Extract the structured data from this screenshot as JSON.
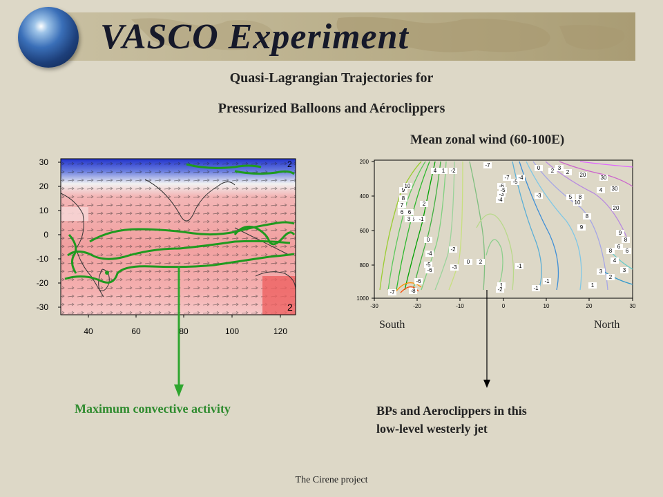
{
  "header": {
    "title": "VASCO Experiment",
    "subtitle_line1": "Quasi-Lagrangian Trajectories for",
    "subtitle_line2": "Pressurized Balloons and Aéroclippers"
  },
  "left_map": {
    "x_ticks": [
      "40",
      "60",
      "80",
      "100",
      "120"
    ],
    "y_ticks": [
      "30",
      "20",
      "10",
      "0",
      "-10",
      "-20",
      "-30"
    ],
    "corner_labels": [
      "2",
      "2"
    ],
    "caption": "Maximum convective activity"
  },
  "right_chart": {
    "title": "Mean zonal wind (60-100E)",
    "x_ticks": [
      "-30",
      "-20",
      "-10",
      "0",
      "10",
      "20",
      "30"
    ],
    "y_ticks": [
      "200",
      "400",
      "600",
      "800",
      "1000"
    ],
    "south_label": "South",
    "north_label": "North",
    "caption_line1": "BPs and Aeroclippers in this",
    "caption_line2": "low-level westerly jet",
    "contour_labels": [
      "4",
      "1",
      "-2",
      "-7",
      "-6",
      "-7",
      "-5",
      "-4",
      "0",
      "2",
      "3",
      "2",
      "9",
      "8",
      "10",
      "7",
      "6",
      "6",
      "2",
      "5",
      "3",
      "-1",
      "0",
      "-4",
      "-5",
      "-6",
      "-6",
      "-8",
      "-2",
      "-3",
      "0",
      "2",
      "1",
      "-2",
      "-1",
      "-1",
      "-1",
      "-3",
      "-5",
      "-4",
      "-3",
      "5",
      "8",
      "10",
      "20",
      "30",
      "30",
      "4",
      "20",
      "9",
      "8",
      "9",
      "8",
      "6",
      "8",
      "6",
      "4",
      "3",
      "2",
      "3",
      "1",
      "-7"
    ],
    "colors": {
      "frame": "#000000",
      "background": "#ddd8c7"
    }
  },
  "footer": {
    "text": "The Cirene project"
  },
  "colors": {
    "caption_green": "#2e8b2e",
    "trajectory_green": "#1f9a1f",
    "arrow_green": "#2ea52e"
  }
}
